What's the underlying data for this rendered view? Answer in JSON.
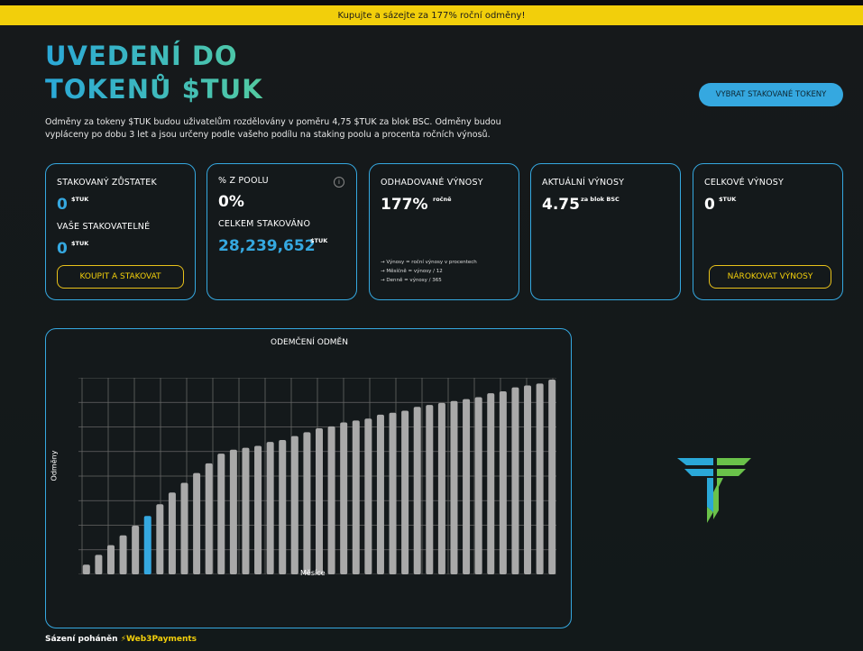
{
  "banner": {
    "text": "Kupujte a sázejte za 177% roční odměny!"
  },
  "header": {
    "title_line1": "UVEDENÍ DO",
    "title_line2": "TOKENŮ $TUK",
    "intro": "Odměny za tokeny $TUK budou uživatelům rozdělovány v poměru 4,75 $TUK za blok BSC. Odměny budou vypláceny po dobu 3 let a jsou určeny podle vašeho podílu na staking poolu a procenta ročních výnosů.",
    "select_button": "VYBRAT STAKOVANÉ TOKENY"
  },
  "cards": {
    "balance": {
      "staked_label": "STAKOVANÝ ZŮSTATEK",
      "staked_value": "0",
      "staked_unit": "$TUK",
      "stakeable_label": "VAŠE STAKOVATELNÉ",
      "stakeable_value": "0",
      "stakeable_unit": "$TUK",
      "button": "KOUPIT A STAKOVAT"
    },
    "pool": {
      "label": "% Z POOLU",
      "value": "0%",
      "total_label": "CELKEM STAKOVÁNO",
      "total_value": "28,239,652",
      "total_unit": "$TUK",
      "info_icon": "i"
    },
    "estimated": {
      "label": "ODHADOVANÉ VÝNOSY",
      "value": "177%",
      "suffix": "ročně",
      "formula1": "→ Výnosy = roční výnosy v procentech",
      "formula2": "→ Měsíčně = výnosy / 12",
      "formula3": "→ Denně = výnosy / 365"
    },
    "current": {
      "label": "AKTUÁLNÍ VÝNOSY",
      "value": "4.75",
      "suffix": "za blok BSC"
    },
    "total": {
      "label": "CELKOVÉ VÝNOSY",
      "value": "0",
      "unit": "$TUK",
      "button": "NÁROKOVAT VÝNOSY"
    }
  },
  "chart": {
    "title": "ODEMČENÍ ODMĚN",
    "ylabel": "Odměny",
    "xlabel": "Měsíce"
  },
  "chart_data": {
    "type": "bar",
    "title": "ODEMČENÍ ODMĚN",
    "xlabel": "Měsíce",
    "ylabel": "Odměny",
    "grid": true,
    "ylim": [
      0,
      100
    ],
    "highlight_index": 5,
    "values": [
      5,
      10,
      15,
      20,
      25,
      30,
      36,
      42,
      47,
      52,
      57,
      62,
      64,
      65,
      66,
      68,
      69,
      71,
      73,
      75,
      76,
      78,
      79,
      80,
      82,
      83,
      84,
      86,
      87,
      88,
      89,
      90,
      91,
      93,
      94,
      96,
      97,
      98,
      100
    ],
    "colors": {
      "bar": "#a9a9a9",
      "highlight": "#35a8e0",
      "grid": "#666666"
    }
  },
  "footer": {
    "text": "Sázení poháněn",
    "brand": "Web3Payments",
    "brand_icon": "bolt-icon"
  },
  "logo": {
    "icon": "tuk-logo-icon",
    "colors": [
      "#2aa8d8",
      "#6ac24a"
    ]
  }
}
